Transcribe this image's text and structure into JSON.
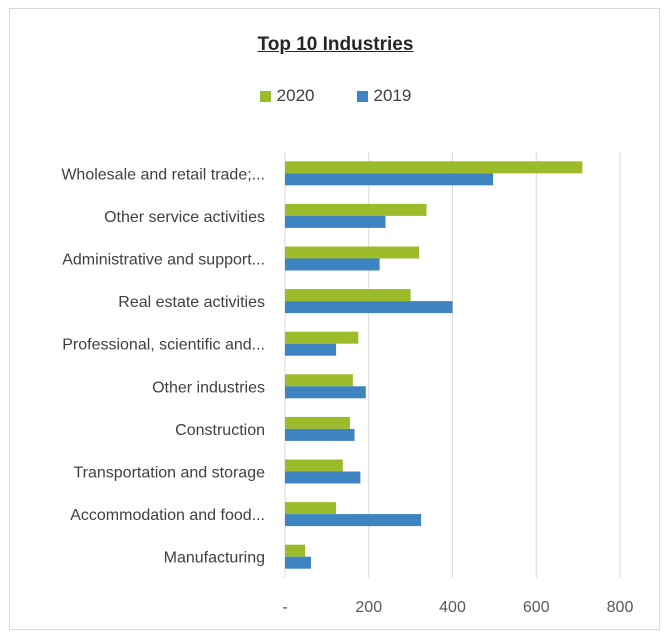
{
  "chart_data": {
    "type": "bar",
    "orientation": "horizontal",
    "title": "Top 10 Industries",
    "categories": [
      "Wholesale and retail trade;...",
      "Other service activities",
      "Administrative and support...",
      "Real estate activities",
      "Professional, scientific and...",
      "Other industries",
      "Construction",
      "Transportation and storage",
      "Accommodation and food...",
      "Manufacturing"
    ],
    "series": [
      {
        "name": "2020",
        "color": "#9bbb2b",
        "values": [
          710,
          338,
          320,
          300,
          175,
          162,
          155,
          138,
          122,
          48
        ]
      },
      {
        "name": "2019",
        "color": "#3d84c0",
        "values": [
          497,
          240,
          226,
          400,
          122,
          193,
          166,
          180,
          325,
          62
        ]
      }
    ],
    "xlim": [
      0,
      800
    ],
    "x_ticks": [
      "-",
      "200",
      "400",
      "600",
      "800"
    ],
    "grid": true,
    "legend_position": "top"
  }
}
